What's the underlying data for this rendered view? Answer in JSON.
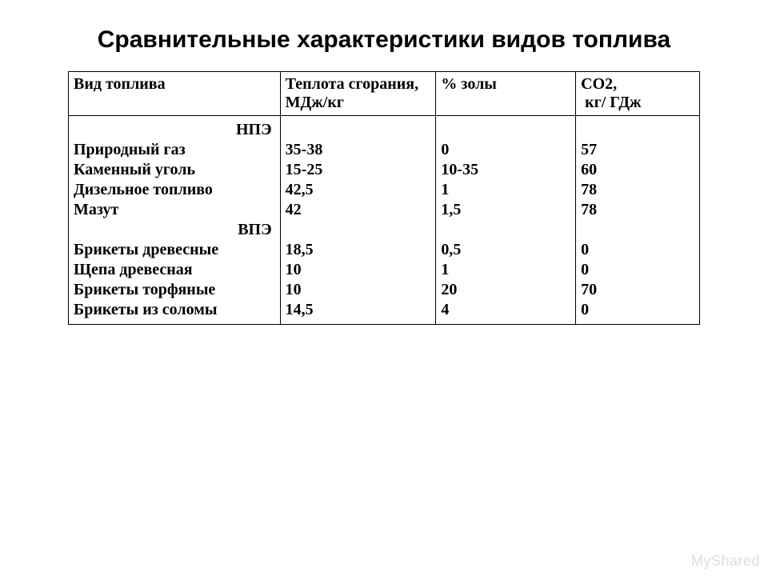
{
  "title": "Сравнительные характеристики видов топлива",
  "columns": {
    "c0": "Вид топлива",
    "c1": "Теплота сгорания, МДж/кг",
    "c2": "% золы",
    "c3": "CO2,\n кг/ ГДж"
  },
  "sections": {
    "s1": "НПЭ",
    "s2": "ВПЭ"
  },
  "rows": {
    "r1": {
      "fuel": "Природный газ",
      "heat": "35-38",
      "ash": "0",
      "co2": "57"
    },
    "r2": {
      "fuel": "Каменный уголь",
      "heat": "15-25",
      "ash": "10-35",
      "co2": "60"
    },
    "r3": {
      "fuel": "Дизельное топливо",
      "heat": "42,5",
      "ash": "1",
      "co2": "78"
    },
    "r4": {
      "fuel": "Мазут",
      "heat": "42",
      "ash": "1,5",
      "co2": "78"
    },
    "r5": {
      "fuel": "Брикеты древесные",
      "heat": "18,5",
      "ash": "0,5",
      "co2": "0"
    },
    "r6": {
      "fuel": "Щепа древесная",
      "heat": "10",
      "ash": "1",
      "co2": "0"
    },
    "r7": {
      "fuel": "Брикеты торфяные",
      "heat": "10",
      "ash": "20",
      "co2": "70"
    },
    "r8": {
      "fuel": "Брикеты из соломы",
      "heat": "14,5",
      "ash": "4",
      "co2": "0"
    }
  },
  "watermark": "MyShared",
  "style": {
    "page_bg": "#ffffff",
    "text_color": "#000000",
    "border_color": "#000000",
    "title_fontsize": 30,
    "cell_fontsize": 20,
    "watermark_color": "#dddddd"
  }
}
